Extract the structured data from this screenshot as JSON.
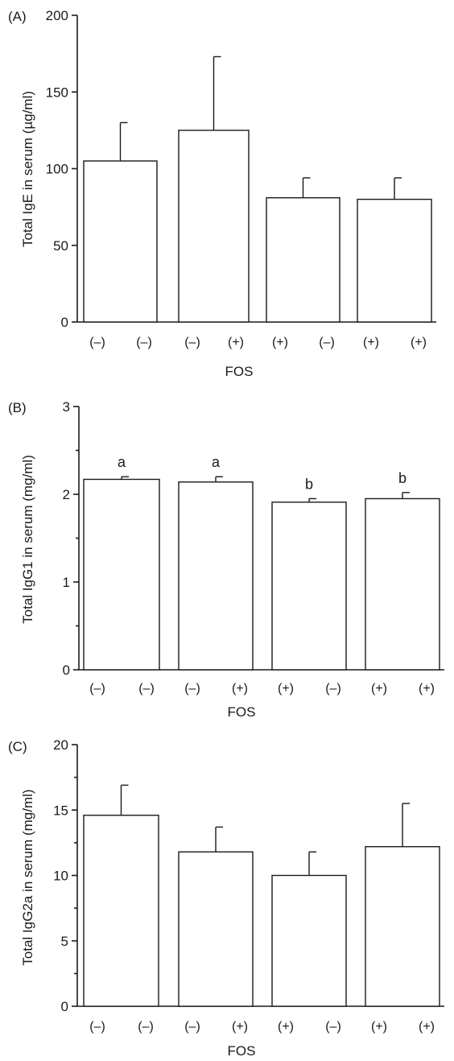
{
  "chart_data": [
    {
      "type": "bar",
      "panel_label": "(A)",
      "ylabel": "Total IgE in serum (µg/ml)",
      "xlabel": "FOS",
      "ylim": [
        0,
        200
      ],
      "yticks": [
        "0",
        "50",
        "100",
        "150",
        "200"
      ],
      "categories": [
        [
          "(–)",
          "(–)"
        ],
        [
          "(–)",
          "(+)"
        ],
        [
          "(+)",
          "(–)"
        ],
        [
          "(+)",
          "(+)"
        ]
      ],
      "values": [
        105,
        125,
        81,
        80
      ],
      "errors": [
        25,
        48,
        13,
        14
      ],
      "annotations": [
        "",
        "",
        "",
        ""
      ]
    },
    {
      "type": "bar",
      "panel_label": "(B)",
      "ylabel": "Total IgG1 in serum (mg/ml)",
      "xlabel": "FOS",
      "ylim": [
        0,
        3
      ],
      "yticks": [
        "0",
        "1",
        "2",
        "3"
      ],
      "categories": [
        [
          "(–)",
          "(–)"
        ],
        [
          "(–)",
          "(+)"
        ],
        [
          "(+)",
          "(–)"
        ],
        [
          "(+)",
          "(+)"
        ]
      ],
      "values": [
        2.17,
        2.14,
        1.91,
        1.95
      ],
      "errors": [
        0.03,
        0.06,
        0.04,
        0.07
      ],
      "annotations": [
        "a",
        "a",
        "b",
        "b"
      ]
    },
    {
      "type": "bar",
      "panel_label": "(C)",
      "ylabel": "Total IgG2a in serum (mg/ml)",
      "xlabel": "FOS",
      "ylim": [
        0,
        20
      ],
      "yticks": [
        "0",
        "5",
        "10",
        "15",
        "20"
      ],
      "categories": [
        [
          "(–)",
          "(–)"
        ],
        [
          "(–)",
          "(+)"
        ],
        [
          "(+)",
          "(–)"
        ],
        [
          "(+)",
          "(+)"
        ]
      ],
      "values": [
        14.6,
        11.8,
        10.0,
        12.2
      ],
      "errors": [
        2.3,
        1.9,
        1.8,
        3.3
      ],
      "annotations": [
        "",
        "",
        "",
        ""
      ]
    }
  ]
}
